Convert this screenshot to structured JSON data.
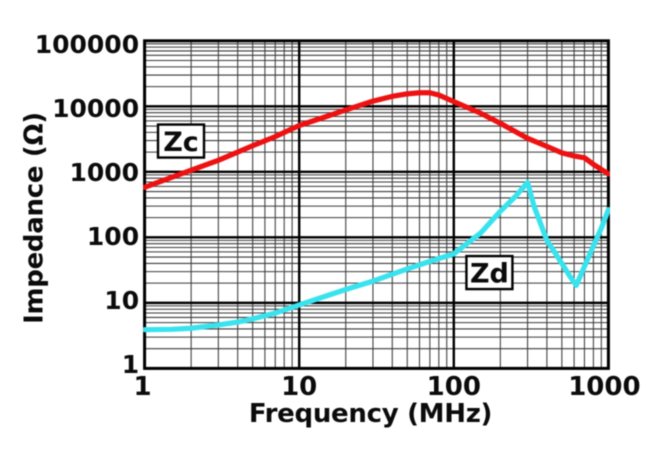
{
  "chart_data": {
    "type": "line",
    "title": "",
    "xlabel": "Frequency (MHz)",
    "ylabel": "Impedance (Ω)",
    "x_scale": "log",
    "y_scale": "log",
    "xlim": [
      1,
      1000
    ],
    "ylim": [
      1,
      100000
    ],
    "x_ticks": [
      1,
      10,
      100,
      1000
    ],
    "y_ticks": [
      1,
      10,
      100,
      1000,
      10000,
      100000
    ],
    "grid": "log major and minor gridlines, both axes",
    "legend_position": "boxed inline labels on curves",
    "background_color": "#ffffff",
    "grid_major_color": "#000000",
    "grid_minor_color": "#3a3a3a",
    "series": [
      {
        "name": "Zc",
        "color": "#ee1111",
        "label_anchor": {
          "x": 1.72,
          "y": 2950
        },
        "points": [
          [
            1,
            580
          ],
          [
            2,
            1060
          ],
          [
            3,
            1500
          ],
          [
            5,
            2500
          ],
          [
            7,
            3450
          ],
          [
            10,
            5100
          ],
          [
            15,
            7000
          ],
          [
            20,
            8800
          ],
          [
            30,
            12000
          ],
          [
            40,
            14200
          ],
          [
            50,
            15500
          ],
          [
            60,
            16100
          ],
          [
            70,
            16100
          ],
          [
            80,
            14900
          ],
          [
            100,
            11800
          ],
          [
            150,
            7800
          ],
          [
            200,
            5500
          ],
          [
            300,
            3250
          ],
          [
            400,
            2450
          ],
          [
            500,
            1950
          ],
          [
            600,
            1750
          ],
          [
            700,
            1640
          ],
          [
            800,
            1300
          ],
          [
            1000,
            930
          ]
        ]
      },
      {
        "name": "Zd",
        "color": "#38e3ee",
        "label_anchor": {
          "x": 170,
          "y": 29
        },
        "points": [
          [
            1,
            3.9
          ],
          [
            1.5,
            3.95
          ],
          [
            2,
            4.1
          ],
          [
            3,
            4.6
          ],
          [
            4,
            5.1
          ],
          [
            5,
            5.7
          ],
          [
            7,
            7.0
          ],
          [
            10,
            9.3
          ],
          [
            15,
            12.8
          ],
          [
            20,
            16
          ],
          [
            30,
            21.5
          ],
          [
            50,
            33
          ],
          [
            70,
            43
          ],
          [
            100,
            56
          ],
          [
            150,
            118
          ],
          [
            200,
            250
          ],
          [
            250,
            420
          ],
          [
            300,
            690
          ],
          [
            330,
            300
          ],
          [
            400,
            90
          ],
          [
            500,
            40
          ],
          [
            560,
            26
          ],
          [
            620,
            18.5
          ],
          [
            700,
            36
          ],
          [
            800,
            74
          ],
          [
            900,
            138
          ],
          [
            1000,
            265
          ]
        ]
      }
    ]
  }
}
